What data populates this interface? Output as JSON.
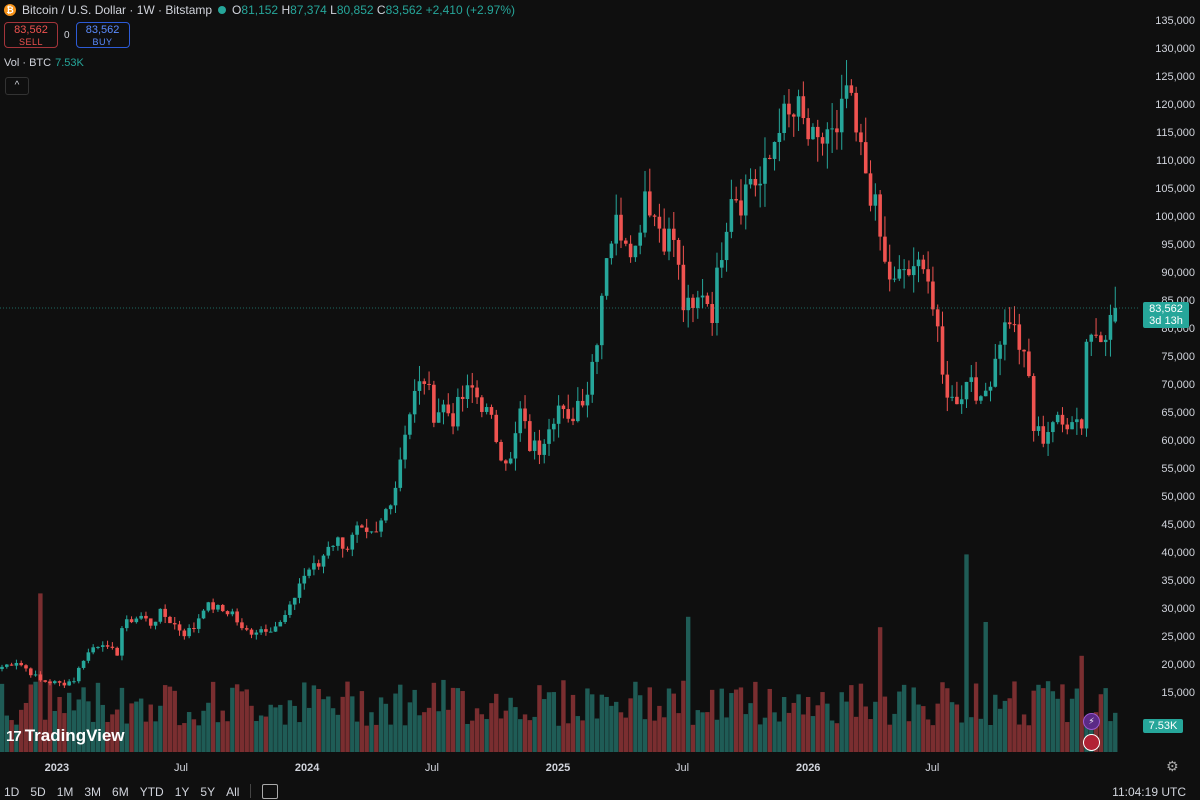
{
  "header": {
    "symbol_title": "Bitcoin / U.S. Dollar · 1W · Bitstamp",
    "coin_icon": "bitcoin-icon",
    "ohlc": {
      "o_label": "O",
      "o_value": "81,152",
      "h_label": "H",
      "h_value": "87,374",
      "l_label": "L",
      "l_value": "80,852",
      "c_label": "C",
      "c_value": "83,562",
      "change": "+2,410 (+2.97%)"
    }
  },
  "trade": {
    "sell_price": "83,562",
    "sell_label": "SELL",
    "spread": "0",
    "buy_price": "83,562",
    "buy_label": "BUY"
  },
  "volume_legend": {
    "label": "Vol · BTC",
    "value": "7.53K"
  },
  "collapse_icon": "chevron-up-icon",
  "brand": {
    "mark": "17",
    "name": "TradingView"
  },
  "ranges": [
    "1D",
    "5D",
    "1M",
    "3M",
    "6M",
    "YTD",
    "1Y",
    "5Y",
    "All"
  ],
  "calendar_icon": "calendar-goto-icon",
  "clock": "11:04:19 UTC",
  "settings_icon": "gear-icon",
  "last_price_tag": {
    "price": "83,562",
    "countdown": "3d 13h"
  },
  "volume_tag": "7.53K",
  "colors": {
    "up": "#26a69a",
    "down": "#ef5350",
    "background": "#0f0f0f"
  },
  "chart_data": {
    "type": "candlestick",
    "ylim": [
      0,
      135000
    ],
    "y_ticks": [
      15000,
      20000,
      25000,
      30000,
      35000,
      40000,
      45000,
      50000,
      55000,
      60000,
      65000,
      70000,
      75000,
      80000,
      85000,
      90000,
      95000,
      100000,
      105000,
      110000,
      115000,
      120000,
      125000,
      130000,
      135000
    ],
    "y_tick_labels": [
      "15,000",
      "20,000",
      "25,000",
      "30,000",
      "35,000",
      "40,000",
      "45,000",
      "50,000",
      "55,000",
      "60,000",
      "65,000",
      "70,000",
      "75,000",
      "80,000",
      "85,000",
      "90,000",
      "95,000",
      "100,000",
      "105,000",
      "110,000",
      "115,000",
      "120,000",
      "125,000",
      "130,000",
      "135,000"
    ],
    "x_ticks": [
      {
        "label": "2023",
        "date": "2023-01-01"
      },
      {
        "label": "Jul",
        "date": "2023-07-01"
      },
      {
        "label": "2024",
        "date": "2024-01-01"
      },
      {
        "label": "Jul",
        "date": "2024-07-01"
      },
      {
        "label": "2025",
        "date": "2025-01-01"
      },
      {
        "label": "Jul",
        "date": "2025-07-01"
      },
      {
        "label": "2026",
        "date": "2026-01-01"
      },
      {
        "label": "Jul",
        "date": "2026-07-01"
      }
    ],
    "first_week": "2022-10-10",
    "interval": "1W",
    "close_path": [
      [
        0,
        19500
      ],
      [
        3,
        20500
      ],
      [
        5,
        19200
      ],
      [
        8,
        17000
      ],
      [
        10,
        16800
      ],
      [
        12,
        16500
      ],
      [
        13,
        16600
      ],
      [
        15,
        17200
      ],
      [
        17,
        21000
      ],
      [
        19,
        23000
      ],
      [
        21,
        24000
      ],
      [
        22,
        22500
      ],
      [
        24,
        22000
      ],
      [
        25,
        26500
      ],
      [
        27,
        28000
      ],
      [
        29,
        28500
      ],
      [
        31,
        27200
      ],
      [
        33,
        29000
      ],
      [
        34,
        28500
      ],
      [
        36,
        27000
      ],
      [
        38,
        25500
      ],
      [
        40,
        26500
      ],
      [
        42,
        30300
      ],
      [
        44,
        30200
      ],
      [
        46,
        29500
      ],
      [
        48,
        29200
      ],
      [
        50,
        26000
      ],
      [
        52,
        25800
      ],
      [
        54,
        26300
      ],
      [
        56,
        26500
      ],
      [
        58,
        27200
      ],
      [
        60,
        29800
      ],
      [
        62,
        34500
      ],
      [
        64,
        37000
      ],
      [
        66,
        37500
      ],
      [
        68,
        41500
      ],
      [
        70,
        42000
      ],
      [
        72,
        41000
      ],
      [
        74,
        43800
      ],
      [
        76,
        42500
      ],
      [
        78,
        43000
      ],
      [
        80,
        47500
      ],
      [
        82,
        52000
      ],
      [
        84,
        62000
      ],
      [
        86,
        68000
      ],
      [
        88,
        71000
      ],
      [
        90,
        65000
      ],
      [
        92,
        66000
      ],
      [
        94,
        64000
      ],
      [
        96,
        67500
      ],
      [
        98,
        69000
      ],
      [
        100,
        66500
      ],
      [
        102,
        63000
      ],
      [
        104,
        58000
      ],
      [
        106,
        56000
      ],
      [
        108,
        65000
      ],
      [
        110,
        59000
      ],
      [
        112,
        58500
      ],
      [
        114,
        63500
      ],
      [
        116,
        66000
      ],
      [
        118,
        62500
      ],
      [
        120,
        67000
      ],
      [
        122,
        69000
      ],
      [
        124,
        79000
      ],
      [
        126,
        94000
      ],
      [
        128,
        98500
      ],
      [
        130,
        97000
      ],
      [
        132,
        94000
      ],
      [
        134,
        105000
      ],
      [
        136,
        100000
      ],
      [
        138,
        96500
      ],
      [
        140,
        96000
      ],
      [
        142,
        84000
      ],
      [
        144,
        82500
      ],
      [
        146,
        87000
      ],
      [
        148,
        83000
      ],
      [
        150,
        94500
      ],
      [
        152,
        105000
      ],
      [
        154,
        103000
      ],
      [
        156,
        107000
      ],
      [
        158,
        105500
      ],
      [
        160,
        110000
      ],
      [
        162,
        117500
      ],
      [
        164,
        117000
      ],
      [
        166,
        118500
      ],
      [
        168,
        114000
      ],
      [
        170,
        111500
      ],
      [
        172,
        115500
      ],
      [
        174,
        113000
      ],
      [
        176,
        123000
      ],
      [
        178,
        114000
      ],
      [
        180,
        108000
      ],
      [
        182,
        101000
      ],
      [
        184,
        91000
      ],
      [
        186,
        87500
      ],
      [
        188,
        90500
      ],
      [
        190,
        89000
      ],
      [
        192,
        93000
      ],
      [
        193,
        89000
      ],
      [
        195,
        78000
      ],
      [
        196,
        71000
      ],
      [
        198,
        67000
      ],
      [
        200,
        68500
      ],
      [
        202,
        72000
      ],
      [
        204,
        66000
      ],
      [
        206,
        71500
      ],
      [
        208,
        78500
      ],
      [
        210,
        82000
      ],
      [
        212,
        77000
      ],
      [
        214,
        71000
      ],
      [
        215,
        62000
      ],
      [
        217,
        60500
      ],
      [
        219,
        63500
      ],
      [
        221,
        62500
      ],
      [
        223,
        64500
      ],
      [
        225,
        63000
      ],
      [
        226,
        78000
      ],
      [
        228,
        79500
      ],
      [
        230,
        80000
      ],
      [
        231,
        81152
      ],
      [
        232,
        83562
      ]
    ],
    "last_candle": {
      "open": 81152,
      "high": 87374,
      "low": 80852,
      "close": 83562
    },
    "volume": {
      "unit": "BTC",
      "last": 7530,
      "baseline": 10000,
      "spike_weeks": [
        [
          8,
          30500
        ],
        [
          201,
          38000
        ],
        [
          205,
          25000
        ],
        [
          183,
          24000
        ],
        [
          143,
          26000
        ],
        [
          225,
          18500
        ]
      ]
    }
  }
}
